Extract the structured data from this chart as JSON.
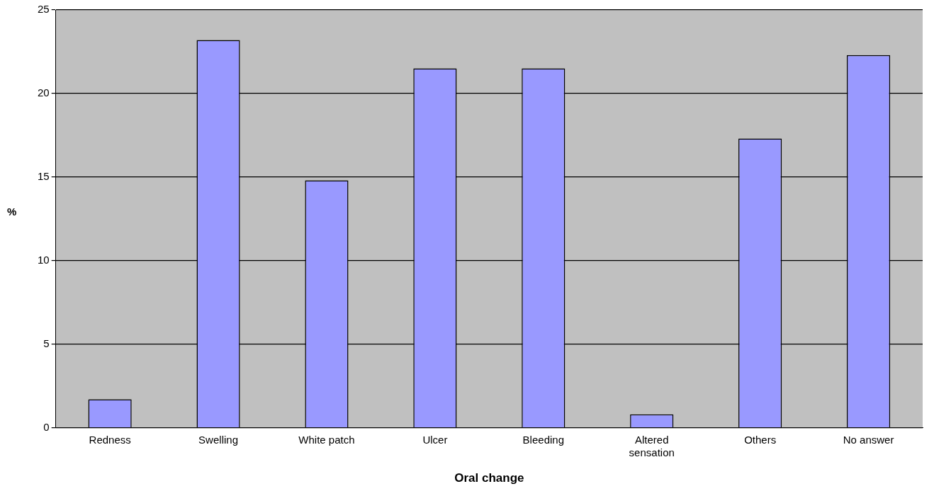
{
  "chart_data": {
    "type": "bar",
    "xlabel": "Oral change",
    "ylabel": "%",
    "categories": [
      "Redness",
      "Swelling",
      "White patch",
      "Ulcer",
      "Bleeding",
      "Altered sensation",
      "Others",
      "No answer"
    ],
    "values": [
      1.7,
      23.2,
      14.8,
      21.5,
      21.5,
      0.8,
      17.3,
      22.3
    ],
    "color": "#9999ff",
    "ylim": [
      0,
      25
    ],
    "yticks": [
      0,
      5,
      10,
      15,
      20,
      25
    ],
    "grid": "y",
    "legend": false
  }
}
